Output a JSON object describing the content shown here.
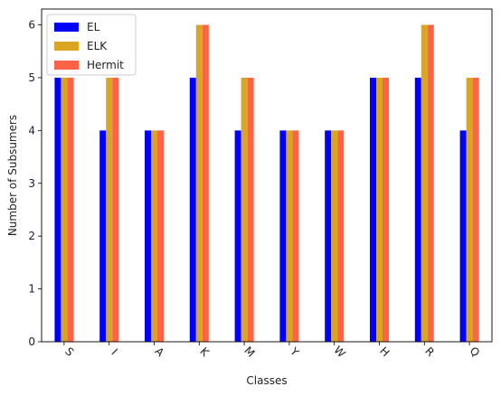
{
  "chart_data": {
    "type": "bar",
    "categories": [
      "S",
      "I",
      "A",
      "K",
      "M",
      "Y",
      "W",
      "H",
      "R",
      "Q"
    ],
    "series": [
      {
        "name": "EL",
        "color": "#0000ff",
        "values": [
          5,
          4,
          4,
          5,
          4,
          4,
          4,
          5,
          5,
          4
        ]
      },
      {
        "name": "ELK",
        "color": "#daa520",
        "values": [
          5,
          5,
          4,
          6,
          5,
          4,
          4,
          5,
          6,
          5
        ]
      },
      {
        "name": "Hermit",
        "color": "#ff6347",
        "values": [
          5,
          5,
          4,
          6,
          5,
          4,
          4,
          5,
          6,
          5
        ]
      }
    ],
    "xlabel": "Classes",
    "ylabel": "Number of Subsumers",
    "ylim": [
      0,
      6.3
    ],
    "yticks": [
      0,
      1,
      2,
      3,
      4,
      5,
      6
    ],
    "xtick_rotation": 45,
    "grid": false,
    "legend_position": "top-left"
  }
}
